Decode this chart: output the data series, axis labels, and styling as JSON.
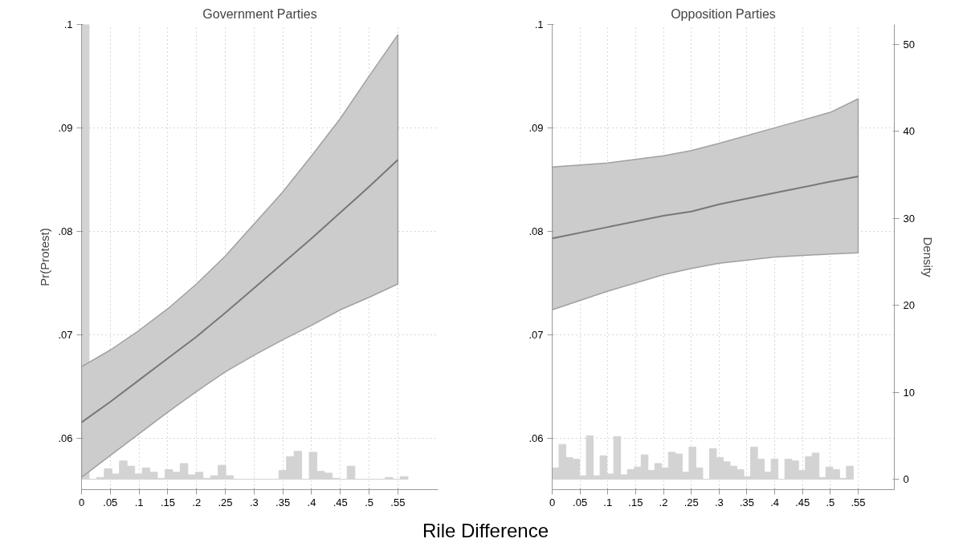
{
  "chart_data": [
    {
      "type": "line",
      "title": "Government Parties",
      "ylabel": "Pr(Protest)",
      "xlabel": "Rile Difference",
      "xlim": [
        0,
        0.62
      ],
      "ylim": [
        0.055,
        0.1
      ],
      "y2lim": [
        -1.2,
        52.3
      ],
      "xticks": [
        {
          "value": 0,
          "label": "0"
        },
        {
          "value": 0.05,
          "label": ".05"
        },
        {
          "value": 0.1,
          "label": ".1"
        },
        {
          "value": 0.15,
          "label": ".15"
        },
        {
          "value": 0.2,
          "label": ".2"
        },
        {
          "value": 0.25,
          "label": ".25"
        },
        {
          "value": 0.3,
          "label": ".3"
        },
        {
          "value": 0.35,
          "label": ".35"
        },
        {
          "value": 0.4,
          "label": ".4"
        },
        {
          "value": 0.45,
          "label": ".45"
        },
        {
          "value": 0.5,
          "label": ".5"
        },
        {
          "value": 0.55,
          "label": ".55"
        }
      ],
      "yticks": [
        {
          "value": 0.06,
          "label": ".06"
        },
        {
          "value": 0.07,
          "label": ".07"
        },
        {
          "value": 0.08,
          "label": ".08"
        },
        {
          "value": 0.09,
          "label": ".09"
        },
        {
          "value": 0.1,
          "label": ".1"
        }
      ],
      "grid": true,
      "tick_labels": "xy",
      "series": [
        {
          "type": "histogram",
          "axis": "y2",
          "color": "#d3d3d3",
          "bins": [
            0,
            0.0132,
            0.0264,
            0.0396,
            0.0528,
            0.066,
            0.0792,
            0.0924,
            0.1056,
            0.1188,
            0.132,
            0.1452,
            0.1584,
            0.1716,
            0.1848,
            0.198,
            0.2112,
            0.2244,
            0.2376,
            0.2508,
            0.264,
            0.2772,
            0.2904,
            0.3036,
            0.3168,
            0.33,
            0.3432,
            0.3564,
            0.3696,
            0.3828,
            0.396,
            0.4092,
            0.4224,
            0.4356,
            0.4488,
            0.462,
            0.4752,
            0.4884,
            0.5016,
            0.5148,
            0.528,
            0.5412,
            0.5544,
            0.5676
          ],
          "values": [
            52.3,
            0,
            0.2,
            1.2,
            0.6,
            2.1,
            1.5,
            0.6,
            1.3,
            0.8,
            0.1,
            1.1,
            0.8,
            1.8,
            0.5,
            0.8,
            0.1,
            0.4,
            1.6,
            0.4,
            0,
            0,
            0,
            0,
            0,
            0,
            1.0,
            2.6,
            3.2,
            0,
            3.1,
            0.9,
            0.7,
            0.1,
            0,
            1.5,
            0,
            0,
            0,
            0,
            0.2,
            0,
            0.3
          ]
        },
        {
          "color": "#777777",
          "x": [
            0,
            0.05,
            0.1,
            0.15,
            0.2,
            0.25,
            0.3,
            0.35,
            0.4,
            0.45,
            0.5,
            0.55
          ],
          "values": [
            0.0615,
            0.0635,
            0.0656,
            0.0677,
            0.0698,
            0.0721,
            0.0745,
            0.0769,
            0.0793,
            0.0818,
            0.0843,
            0.0869
          ],
          "lower": [
            0.0562,
            0.0583,
            0.0604,
            0.0625,
            0.0645,
            0.0664,
            0.068,
            0.0695,
            0.0709,
            0.0724,
            0.0736,
            0.0749
          ],
          "upper": [
            0.0669,
            0.0685,
            0.0704,
            0.0725,
            0.0749,
            0.0776,
            0.0807,
            0.0838,
            0.0873,
            0.0909,
            0.095,
            0.099
          ]
        }
      ]
    },
    {
      "type": "line",
      "title": "Opposition Parties",
      "y2label": "Density",
      "xlim": [
        0,
        0.615
      ],
      "ylim": [
        0.055,
        0.1
      ],
      "y2lim": [
        -1.2,
        52.3
      ],
      "xticks": [
        {
          "value": 0,
          "label": "0"
        },
        {
          "value": 0.05,
          "label": ".05"
        },
        {
          "value": 0.1,
          "label": ".1"
        },
        {
          "value": 0.15,
          "label": ".15"
        },
        {
          "value": 0.2,
          "label": ".2"
        },
        {
          "value": 0.25,
          "label": ".25"
        },
        {
          "value": 0.3,
          "label": ".3"
        },
        {
          "value": 0.35,
          "label": ".35"
        },
        {
          "value": 0.4,
          "label": ".4"
        },
        {
          "value": 0.45,
          "label": ".45"
        },
        {
          "value": 0.5,
          "label": ".5"
        },
        {
          "value": 0.55,
          "label": ".55"
        }
      ],
      "yticks": [
        {
          "value": 0.06,
          "label": ".06"
        },
        {
          "value": 0.07,
          "label": ".07"
        },
        {
          "value": 0.08,
          "label": ".08"
        },
        {
          "value": 0.09,
          "label": ".09"
        },
        {
          "value": 0.1,
          "label": ".1"
        }
      ],
      "y2ticks": [
        0,
        10,
        20,
        30,
        40,
        50
      ],
      "grid": true,
      "series": [
        {
          "type": "histogram",
          "axis": "y2",
          "color": "#d3d3d3",
          "bins": [
            0,
            0.0123,
            0.0246,
            0.0369,
            0.0492,
            0.0615,
            0.0738,
            0.0861,
            0.0984,
            0.1107,
            0.123,
            0.1353,
            0.1476,
            0.1599,
            0.1722,
            0.1845,
            0.1968,
            0.2091,
            0.2214,
            0.2337,
            0.246,
            0.2583,
            0.2706,
            0.2829,
            0.2952,
            0.3075,
            0.3198,
            0.3321,
            0.3444,
            0.3567,
            0.369,
            0.3813,
            0.3936,
            0.4059,
            0.4182,
            0.4305,
            0.4428,
            0.4551,
            0.4674,
            0.4797,
            0.492,
            0.5043,
            0.5166,
            0.5289,
            0.5412
          ],
          "values": [
            1.3,
            4.0,
            2.5,
            2.3,
            0.4,
            5.0,
            0.4,
            2.7,
            0.6,
            4.9,
            0.5,
            1.1,
            1.4,
            2.8,
            1.0,
            1.8,
            1.3,
            3.1,
            2.9,
            0.8,
            3.7,
            1.3,
            0,
            3.5,
            2.5,
            2.0,
            1.5,
            1.1,
            0.3,
            3.7,
            2.3,
            0.8,
            2.3,
            0,
            2.3,
            2.1,
            1.0,
            2.6,
            3.0,
            0.2,
            1.4,
            1.1,
            0.1,
            1.5
          ]
        },
        {
          "color": "#777777",
          "x": [
            0,
            0.1,
            0.2,
            0.25,
            0.3,
            0.4,
            0.5,
            0.55
          ],
          "values": [
            0.0793,
            0.0804,
            0.0815,
            0.0819,
            0.0826,
            0.0837,
            0.0848,
            0.0853
          ],
          "lower": [
            0.0724,
            0.0742,
            0.0758,
            0.0764,
            0.0769,
            0.0775,
            0.0778,
            0.0779
          ],
          "upper": [
            0.0862,
            0.0866,
            0.0873,
            0.0878,
            0.0885,
            0.09,
            0.0915,
            0.0928
          ]
        }
      ]
    }
  ]
}
